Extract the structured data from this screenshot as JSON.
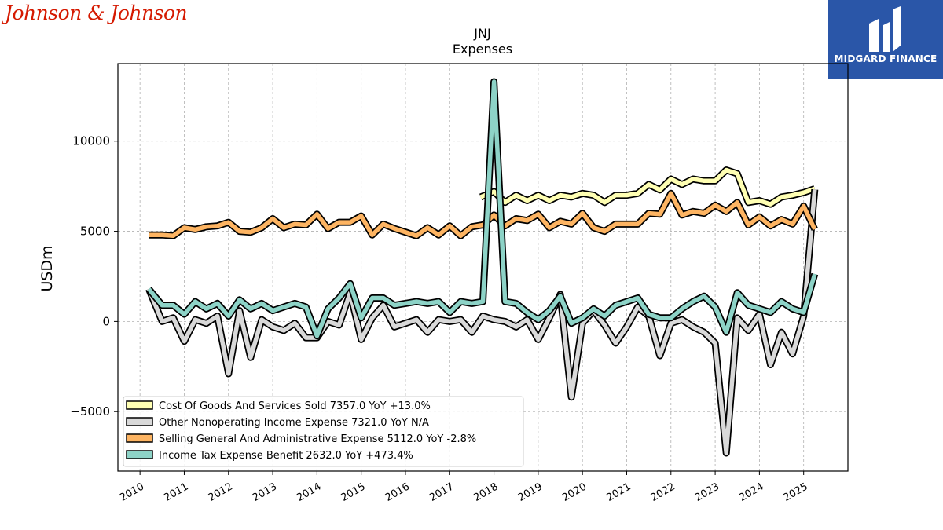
{
  "logos": {
    "left_brand": "Johnson & Johnson",
    "right_brand": "MIDGARD FINANCE"
  },
  "chart_data": {
    "type": "line",
    "title": "JNJ",
    "subtitle": "Expenses",
    "ylabel": "USDm",
    "xlabel": "",
    "xlim": [
      2009.5,
      2026.0
    ],
    "ylim": [
      -8300,
      14300
    ],
    "yticks": [
      -5000,
      0,
      5000,
      10000
    ],
    "ytick_labels": [
      "−5000",
      "0",
      "5000",
      "10000"
    ],
    "xticks": [
      2010,
      2011,
      2012,
      2013,
      2014,
      2015,
      2016,
      2017,
      2018,
      2019,
      2020,
      2021,
      2022,
      2023,
      2024,
      2025
    ],
    "xtick_labels": [
      "2010",
      "2011",
      "2012",
      "2013",
      "2014",
      "2015",
      "2016",
      "2017",
      "2018",
      "2019",
      "2020",
      "2021",
      "2022",
      "2023",
      "2024",
      "2025"
    ],
    "grid": true,
    "legend_position": "lower-left",
    "series": [
      {
        "name": "Cost Of Goods And Services Sold",
        "legend": "Cost Of Goods And Services Sold  7357.0 YoY +13.0%",
        "color": "#ffffb3",
        "x": [
          2017.7,
          2018.0,
          2018.25,
          2018.5,
          2018.75,
          2019.0,
          2019.25,
          2019.5,
          2019.75,
          2020.0,
          2020.25,
          2020.5,
          2020.75,
          2021.0,
          2021.25,
          2021.5,
          2021.75,
          2022.0,
          2022.25,
          2022.5,
          2022.75,
          2023.0,
          2023.25,
          2023.5,
          2023.75,
          2024.0,
          2024.25,
          2024.5,
          2024.75,
          2025.0,
          2025.25
        ],
        "y": [
          6900,
          7200,
          6600,
          7000,
          6700,
          7000,
          6700,
          7000,
          6900,
          7100,
          7000,
          6600,
          7000,
          7000,
          7100,
          7600,
          7300,
          7900,
          7600,
          7900,
          7800,
          7800,
          8400,
          8200,
          6600,
          6700,
          6500,
          6900,
          7000,
          7150,
          7357
        ]
      },
      {
        "name": "Other Nonoperating Income Expense",
        "legend": "Other Nonoperating Income Expense  7321.0 YoY N/A",
        "color": "#d9d9d9",
        "x": [
          2010.2,
          2010.5,
          2010.75,
          2011.0,
          2011.25,
          2011.5,
          2011.75,
          2012.0,
          2012.25,
          2012.5,
          2012.75,
          2013.0,
          2013.25,
          2013.5,
          2013.75,
          2014.0,
          2014.25,
          2014.5,
          2014.75,
          2015.0,
          2015.25,
          2015.5,
          2015.75,
          2016.0,
          2016.25,
          2016.5,
          2016.75,
          2017.0,
          2017.25,
          2017.5,
          2017.75,
          2018.0,
          2018.25,
          2018.5,
          2018.75,
          2019.0,
          2019.25,
          2019.5,
          2019.75,
          2020.0,
          2020.25,
          2020.5,
          2020.75,
          2021.0,
          2021.25,
          2021.5,
          2021.75,
          2022.0,
          2022.25,
          2022.5,
          2022.75,
          2023.0,
          2023.25,
          2023.5,
          2023.75,
          2024.0,
          2024.25,
          2024.5,
          2024.75,
          2025.0,
          2025.25
        ],
        "y": [
          1800,
          0,
          200,
          -1100,
          100,
          -100,
          300,
          -2900,
          600,
          -2000,
          100,
          -300,
          -500,
          -100,
          -900,
          -900,
          0,
          -200,
          1600,
          -1000,
          200,
          900,
          -300,
          -100,
          100,
          -600,
          100,
          0,
          100,
          -600,
          300,
          100,
          0,
          -300,
          100,
          -1000,
          200,
          1500,
          -4200,
          -100,
          600,
          -200,
          -1200,
          -300,
          800,
          300,
          -1900,
          -100,
          100,
          -300,
          -600,
          -1200,
          -7300,
          200,
          -500,
          400,
          -2400,
          -600,
          -1800,
          300,
          7321
        ]
      },
      {
        "name": "Selling General And Administrative Expense",
        "legend": "Selling General And Administrative Expense  5112.0 YoY -2.8%",
        "color": "#fdb462",
        "x": [
          2010.2,
          2010.5,
          2010.75,
          2011.0,
          2011.25,
          2011.5,
          2011.75,
          2012.0,
          2012.25,
          2012.5,
          2012.75,
          2013.0,
          2013.25,
          2013.5,
          2013.75,
          2014.0,
          2014.25,
          2014.5,
          2014.75,
          2015.0,
          2015.25,
          2015.5,
          2015.75,
          2016.0,
          2016.25,
          2016.5,
          2016.75,
          2017.0,
          2017.25,
          2017.5,
          2017.75,
          2018.0,
          2018.25,
          2018.5,
          2018.75,
          2019.0,
          2019.25,
          2019.5,
          2019.75,
          2020.0,
          2020.25,
          2020.5,
          2020.75,
          2021.0,
          2021.25,
          2021.5,
          2021.75,
          2022.0,
          2022.25,
          2022.5,
          2022.75,
          2023.0,
          2023.25,
          2023.5,
          2023.75,
          2024.0,
          2024.25,
          2024.5,
          2024.75,
          2025.0,
          2025.25
        ],
        "y": [
          4800,
          4800,
          4750,
          5200,
          5100,
          5250,
          5300,
          5500,
          5000,
          4950,
          5200,
          5700,
          5200,
          5400,
          5350,
          5950,
          5150,
          5500,
          5500,
          5850,
          4800,
          5400,
          5150,
          4950,
          4750,
          5200,
          4800,
          5300,
          4750,
          5250,
          5350,
          5900,
          5300,
          5700,
          5600,
          5950,
          5200,
          5550,
          5400,
          6000,
          5200,
          5000,
          5400,
          5400,
          5400,
          6000,
          5950,
          7100,
          5900,
          6100,
          6000,
          6450,
          6100,
          6600,
          5350,
          5800,
          5300,
          5650,
          5400,
          6400,
          5112
        ]
      },
      {
        "name": "Income Tax Expense Benefit",
        "legend": "Income Tax Expense Benefit  2632.0 YoY +473.4%",
        "color": "#8dd3c7",
        "x": [
          2010.2,
          2010.5,
          2010.75,
          2011.0,
          2011.25,
          2011.5,
          2011.75,
          2012.0,
          2012.25,
          2012.5,
          2012.75,
          2013.0,
          2013.25,
          2013.5,
          2013.75,
          2014.0,
          2014.25,
          2014.5,
          2014.75,
          2015.0,
          2015.25,
          2015.5,
          2015.75,
          2016.0,
          2016.25,
          2016.5,
          2016.75,
          2017.0,
          2017.25,
          2017.5,
          2017.75,
          2018.0,
          2018.25,
          2018.5,
          2018.75,
          2019.0,
          2019.25,
          2019.5,
          2019.75,
          2020.0,
          2020.25,
          2020.5,
          2020.75,
          2021.0,
          2021.25,
          2021.5,
          2021.75,
          2022.0,
          2022.25,
          2022.5,
          2022.75,
          2023.0,
          2023.25,
          2023.5,
          2023.75,
          2024.0,
          2024.25,
          2024.5,
          2024.75,
          2025.0,
          2025.25
        ],
        "y": [
          1800,
          900,
          900,
          400,
          1100,
          700,
          1000,
          300,
          1200,
          700,
          1000,
          600,
          800,
          1000,
          800,
          -800,
          700,
          1300,
          2100,
          200,
          1300,
          1300,
          900,
          1000,
          1100,
          1000,
          1100,
          500,
          1100,
          1000,
          1100,
          13300,
          1100,
          1000,
          500,
          100,
          600,
          1400,
          -100,
          200,
          700,
          300,
          900,
          1100,
          1300,
          400,
          200,
          200,
          700,
          1100,
          1400,
          800,
          -600,
          1600,
          900,
          700,
          500,
          1100,
          700,
          500,
          2632
        ]
      }
    ]
  }
}
